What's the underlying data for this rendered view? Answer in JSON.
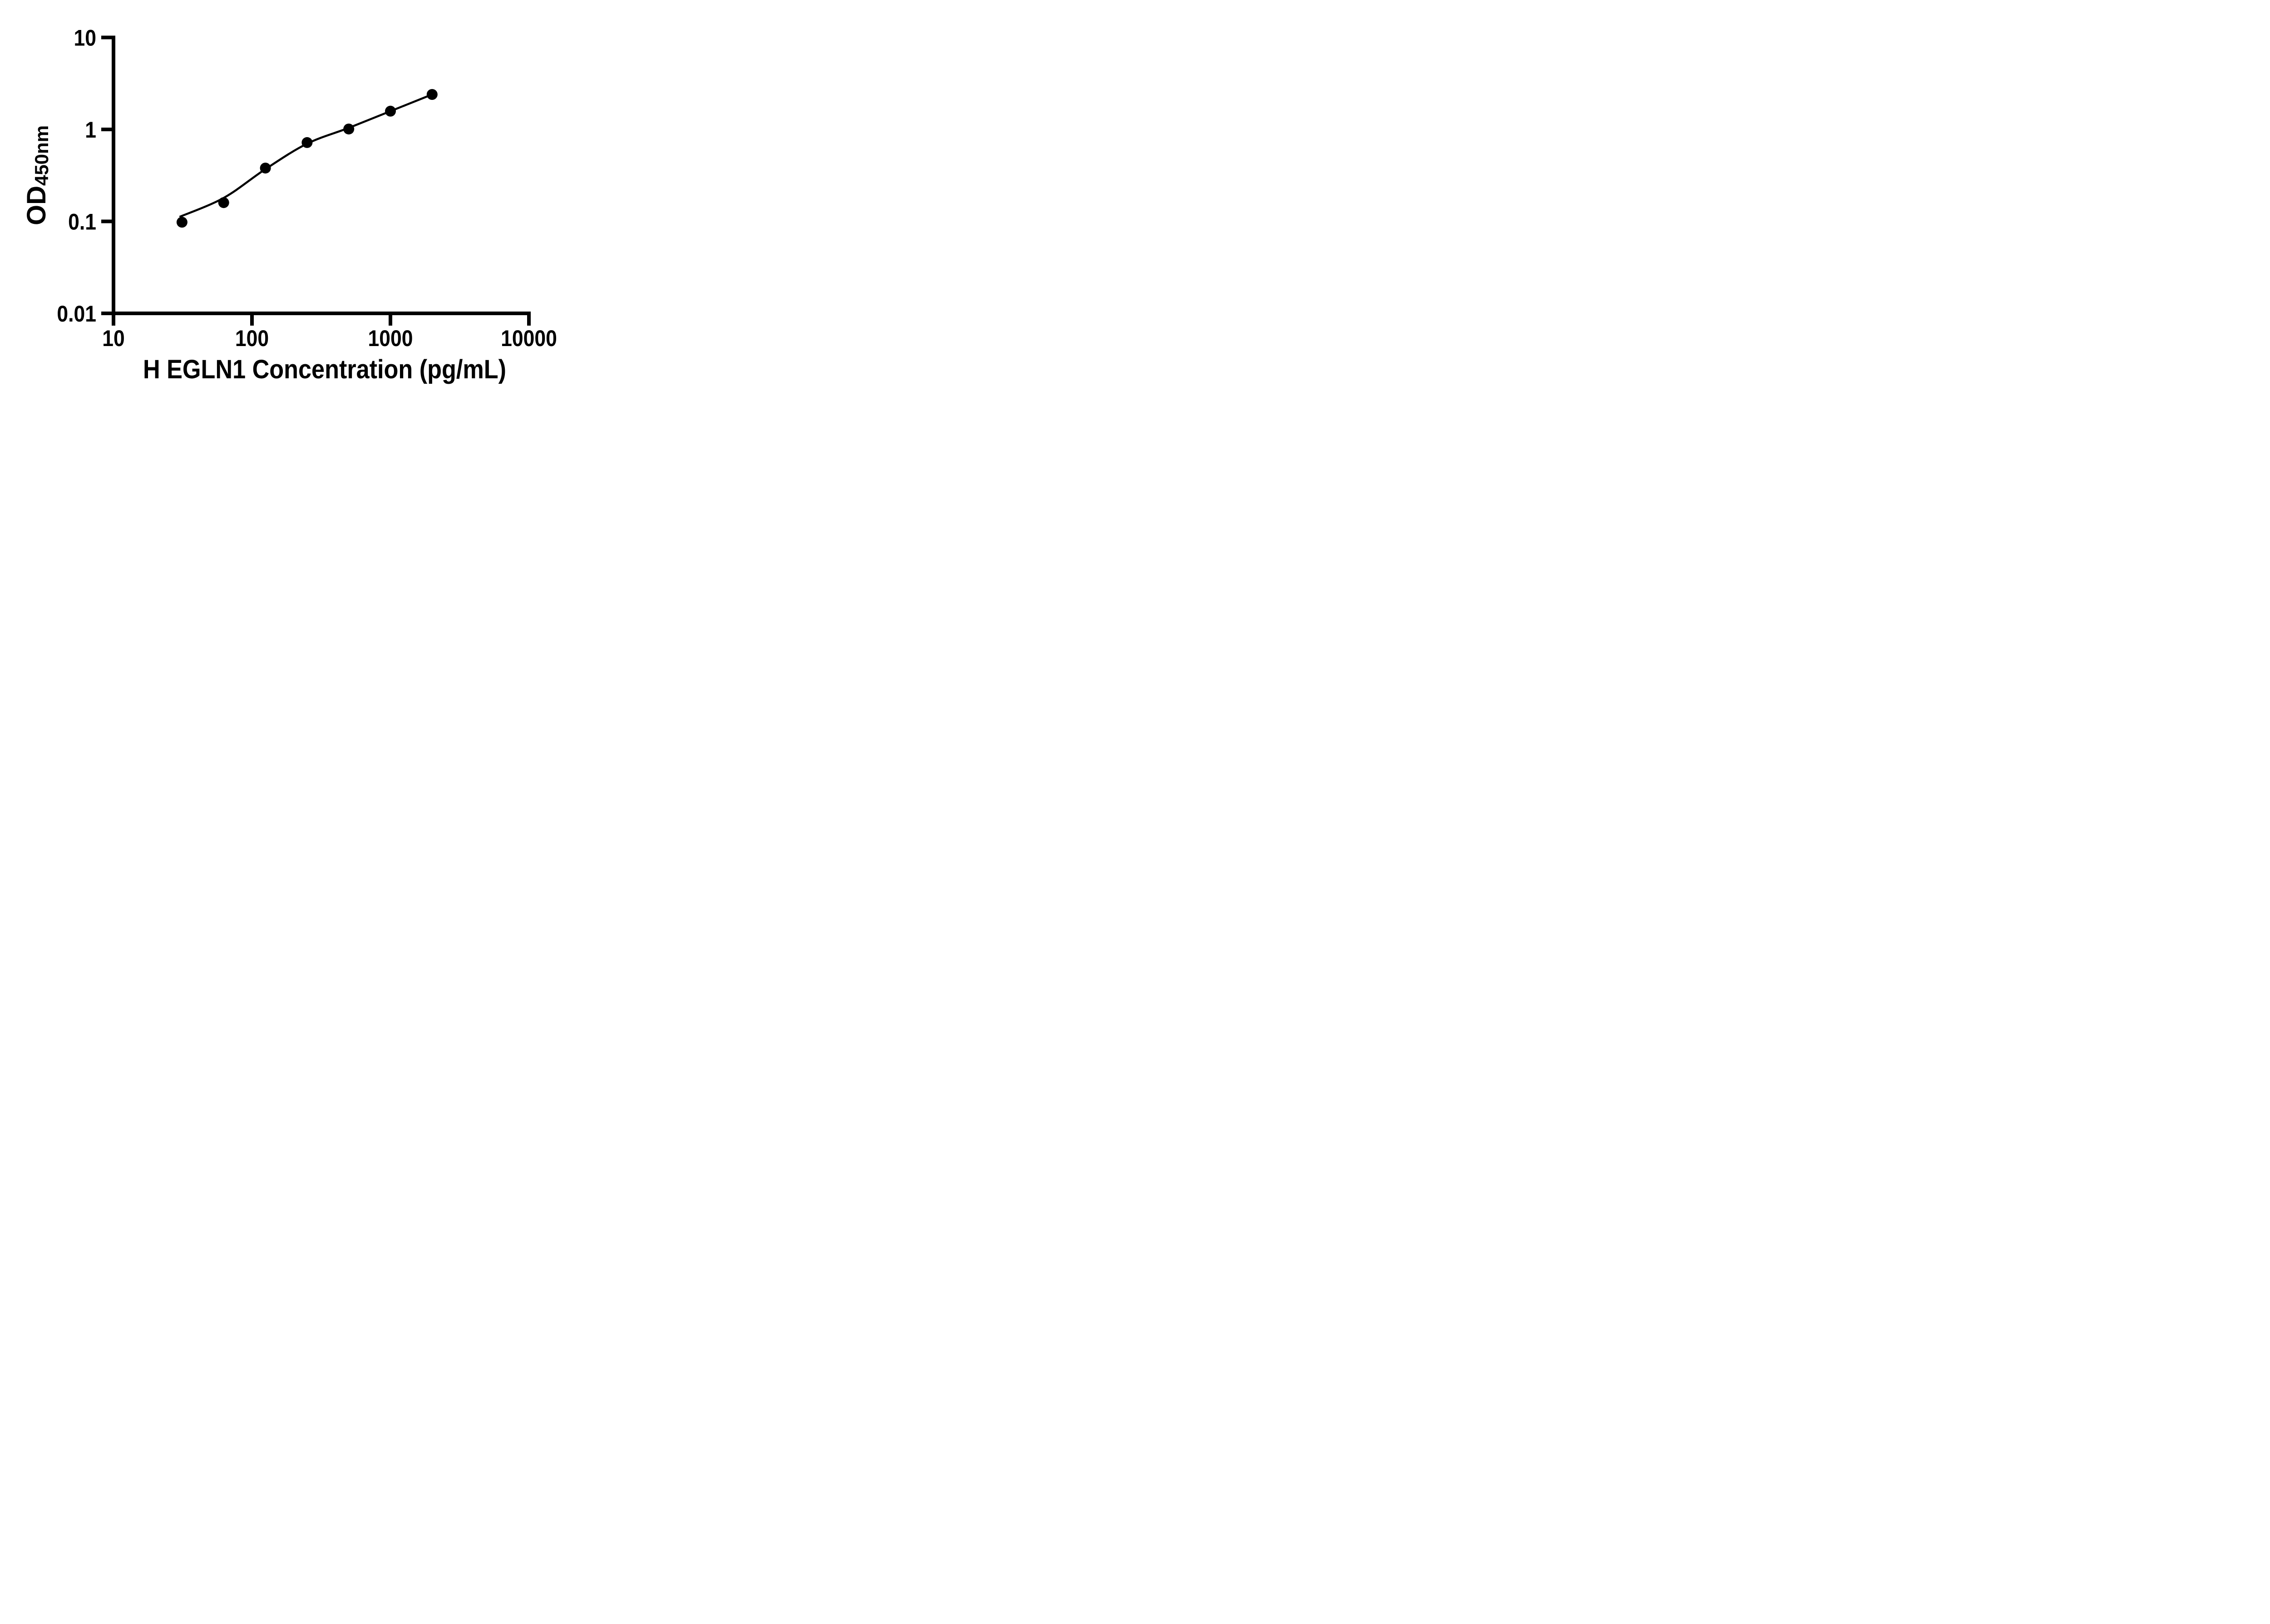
{
  "figure": {
    "background_color": "#ffffff",
    "ink_color": "#000000",
    "description": "ELISA standard curve scatter plot with fitted curve, black on white"
  },
  "chart_data": {
    "type": "scatter",
    "subtype": "elisa-standard-curve-with-fit",
    "title": "",
    "xlabel": "H EGLN1 Concentration (pg/mL)",
    "ylabel_main": "OD",
    "ylabel_subscript": "450nm",
    "x_scale": "log10",
    "y_scale": "log10",
    "xlim": [
      10,
      10000
    ],
    "ylim": [
      0.01,
      10
    ],
    "grid": false,
    "legend": null,
    "x_ticks": {
      "values": [
        10,
        100,
        1000,
        10000
      ],
      "labels": [
        "10",
        "100",
        "1000",
        "10000"
      ]
    },
    "y_ticks": {
      "values": [
        10,
        1,
        0.1,
        0.01
      ],
      "labels": [
        "10",
        "1",
        "0.1",
        "0.01"
      ]
    },
    "marker": {
      "shape": "filled-circle",
      "color": "#000000"
    },
    "series": [
      {
        "name": "standards",
        "color": "#000000",
        "points": [
          {
            "x": 31.25,
            "y": 0.098
          },
          {
            "x": 62.5,
            "y": 0.16
          },
          {
            "x": 125,
            "y": 0.38
          },
          {
            "x": 250,
            "y": 0.72
          },
          {
            "x": 500,
            "y": 1.01
          },
          {
            "x": 1000,
            "y": 1.58
          },
          {
            "x": 2000,
            "y": 2.4
          }
        ]
      }
    ],
    "fit_curve": {
      "name": "4pl-fit-curve",
      "color": "#000000",
      "anchors": [
        [
          30,
          0.112
        ],
        [
          62.5,
          0.18
        ],
        [
          125,
          0.37
        ],
        [
          250,
          0.7
        ],
        [
          500,
          1.04
        ],
        [
          1000,
          1.58
        ],
        [
          2000,
          2.4
        ]
      ]
    }
  }
}
